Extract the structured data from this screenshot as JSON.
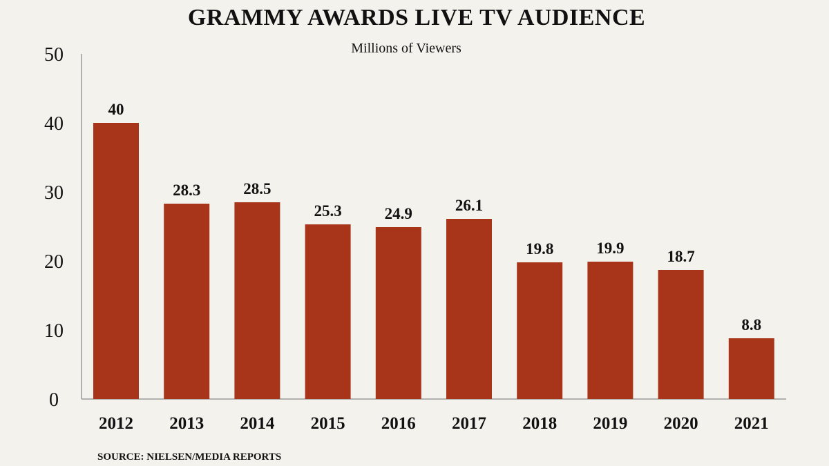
{
  "chart_data": {
    "type": "bar",
    "title": "GRAMMY AWARDS LIVE TV AUDIENCE",
    "subtitle": "Millions of Viewers",
    "categories": [
      "2012",
      "2013",
      "2014",
      "2015",
      "2016",
      "2017",
      "2018",
      "2019",
      "2020",
      "2021"
    ],
    "values": [
      40,
      28.3,
      28.5,
      25.3,
      24.9,
      26.1,
      19.8,
      19.9,
      18.7,
      8.8
    ],
    "data_labels": [
      "40",
      "28.3",
      "28.5",
      "25.3",
      "24.9",
      "26.1",
      "19.8",
      "19.9",
      "18.7",
      "8.8"
    ],
    "ylim": [
      0,
      50
    ],
    "yticks": [
      0,
      10,
      20,
      30,
      40,
      50
    ],
    "xlabel": "",
    "ylabel": "",
    "grid": false,
    "bar_color": "#a8341a",
    "source": "SOURCE: NIELSEN/MEDIA REPORTS"
  }
}
